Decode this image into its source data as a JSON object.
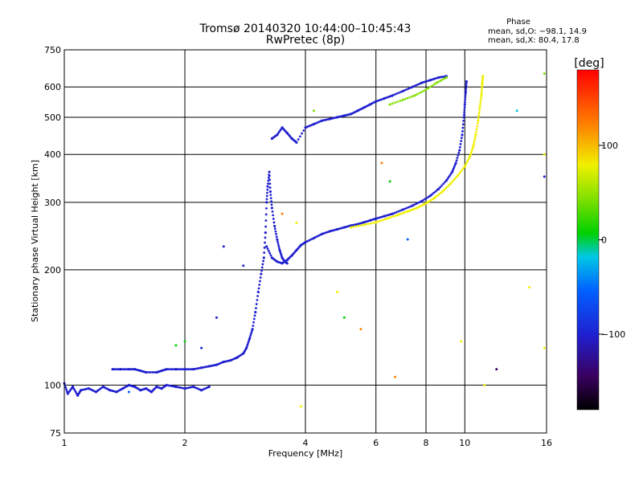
{
  "chart_data": {
    "type": "scatter",
    "title": "Tromsø 20140320 10:44:00–10:45:43",
    "subtitle": "RwPretec (8p)",
    "xlabel": "Frequency [MHz]",
    "ylabel": "Stationary phase Virtual Height [km]",
    "x_scale": "log",
    "y_scale": "log",
    "xlim": [
      1,
      16
    ],
    "ylim": [
      75,
      750
    ],
    "x_ticks": [
      {
        "value": 1,
        "label": "1"
      },
      {
        "value": 2,
        "label": "2"
      },
      {
        "value": 4,
        "label": "4"
      },
      {
        "value": 6,
        "label": "6"
      },
      {
        "value": 8,
        "label": "8"
      },
      {
        "value": 10,
        "label": "10"
      },
      {
        "value": 16,
        "label": "16"
      }
    ],
    "y_ticks": [
      {
        "value": 75,
        "label": "75"
      },
      {
        "value": 100,
        "label": "100"
      },
      {
        "value": 200,
        "label": "200"
      },
      {
        "value": 300,
        "label": "300"
      },
      {
        "value": 400,
        "label": "400"
      },
      {
        "value": 500,
        "label": "500"
      },
      {
        "value": 600,
        "label": "600"
      },
      {
        "value": 750,
        "label": "750"
      }
    ],
    "grid": true,
    "stats": {
      "header": "Phase",
      "line_o": "mean, sd,O: −98.1, 14.9",
      "line_x": "mean, sd,X:  80.4, 17.8"
    },
    "colorbar": {
      "label": "[deg]",
      "ticks": [
        {
          "value": 100,
          "label": "100"
        },
        {
          "value": 0,
          "label": "0"
        },
        {
          "value": -100,
          "label": "−100"
        }
      ],
      "range": [
        -180,
        180
      ]
    },
    "traces": [
      {
        "name": "",
        "phase": -95,
        "points": [
          [
            1.0,
            101
          ],
          [
            1.02,
            95
          ],
          [
            1.05,
            99
          ],
          [
            1.08,
            94
          ],
          [
            1.1,
            97
          ],
          [
            1.15,
            98
          ],
          [
            1.2,
            96
          ],
          [
            1.25,
            99
          ],
          [
            1.3,
            97
          ],
          [
            1.35,
            96
          ],
          [
            1.4,
            98
          ],
          [
            1.45,
            100
          ],
          [
            1.5,
            99
          ],
          [
            1.55,
            97
          ],
          [
            1.6,
            98
          ],
          [
            1.65,
            96
          ],
          [
            1.7,
            99
          ],
          [
            1.75,
            98
          ],
          [
            1.8,
            100
          ],
          [
            1.9,
            99
          ],
          [
            2.0,
            98
          ],
          [
            2.1,
            99
          ],
          [
            2.2,
            97
          ],
          [
            2.3,
            99
          ]
        ]
      },
      {
        "name": "",
        "phase": -98,
        "points": [
          [
            1.32,
            110
          ],
          [
            1.38,
            110
          ],
          [
            1.45,
            110
          ],
          [
            1.5,
            110
          ],
          [
            1.55,
            109
          ],
          [
            1.6,
            108
          ],
          [
            1.7,
            108
          ],
          [
            1.75,
            109
          ],
          [
            1.8,
            110
          ],
          [
            1.9,
            110
          ],
          [
            2.0,
            110
          ],
          [
            2.1,
            110
          ],
          [
            2.2,
            111
          ],
          [
            2.3,
            112
          ],
          [
            2.4,
            113
          ],
          [
            2.5,
            115
          ],
          [
            2.6,
            116
          ],
          [
            2.7,
            118
          ],
          [
            2.8,
            121
          ],
          [
            2.85,
            125
          ],
          [
            2.9,
            132
          ],
          [
            2.95,
            140
          ],
          [
            3.0,
            155
          ],
          [
            3.05,
            175
          ],
          [
            3.1,
            195
          ],
          [
            3.15,
            215
          ],
          [
            3.18,
            250
          ],
          [
            3.2,
            300
          ],
          [
            3.22,
            330
          ],
          [
            3.25,
            360
          ],
          [
            3.27,
            320
          ],
          [
            3.3,
            290
          ],
          [
            3.35,
            260
          ],
          [
            3.4,
            240
          ],
          [
            3.45,
            225
          ],
          [
            3.5,
            215
          ],
          [
            3.55,
            210
          ],
          [
            3.6,
            208
          ]
        ]
      },
      {
        "name": "",
        "phase": -100,
        "points": [
          [
            3.2,
            230
          ],
          [
            3.3,
            215
          ],
          [
            3.4,
            210
          ],
          [
            3.5,
            208
          ],
          [
            3.6,
            212
          ],
          [
            3.7,
            218
          ],
          [
            3.8,
            225
          ],
          [
            3.9,
            232
          ],
          [
            4.0,
            236
          ],
          [
            4.2,
            242
          ],
          [
            4.4,
            248
          ],
          [
            4.6,
            252
          ],
          [
            4.8,
            255
          ],
          [
            5.0,
            258
          ],
          [
            5.2,
            261
          ],
          [
            5.4,
            263
          ],
          [
            5.6,
            266
          ],
          [
            5.8,
            269
          ],
          [
            6.0,
            272
          ],
          [
            6.3,
            276
          ],
          [
            6.6,
            280
          ],
          [
            7.0,
            287
          ],
          [
            7.4,
            294
          ],
          [
            7.8,
            302
          ],
          [
            8.2,
            312
          ],
          [
            8.6,
            325
          ],
          [
            9.0,
            342
          ],
          [
            9.3,
            360
          ],
          [
            9.5,
            380
          ],
          [
            9.7,
            410
          ],
          [
            9.85,
            450
          ],
          [
            9.95,
            500
          ],
          [
            10.0,
            540
          ],
          [
            10.05,
            580
          ],
          [
            10.1,
            620
          ]
        ]
      },
      {
        "name": "",
        "phase": 80,
        "points": [
          [
            5.2,
            258
          ],
          [
            5.6,
            262
          ],
          [
            6.0,
            266
          ],
          [
            6.4,
            272
          ],
          [
            6.8,
            278
          ],
          [
            7.2,
            284
          ],
          [
            7.6,
            290
          ],
          [
            8.0,
            298
          ],
          [
            8.4,
            308
          ],
          [
            8.8,
            320
          ],
          [
            9.2,
            335
          ],
          [
            9.6,
            352
          ],
          [
            10.0,
            372
          ],
          [
            10.3,
            395
          ],
          [
            10.5,
            420
          ],
          [
            10.65,
            450
          ],
          [
            10.8,
            490
          ],
          [
            10.9,
            530
          ],
          [
            11.0,
            570
          ],
          [
            11.05,
            610
          ],
          [
            11.1,
            640
          ]
        ]
      },
      {
        "name": "",
        "phase": -95,
        "points": [
          [
            3.3,
            440
          ],
          [
            3.4,
            450
          ],
          [
            3.5,
            470
          ],
          [
            3.6,
            455
          ],
          [
            3.7,
            440
          ],
          [
            3.8,
            430
          ],
          [
            4.0,
            470
          ],
          [
            4.2,
            480
          ],
          [
            4.4,
            490
          ],
          [
            4.6,
            495
          ],
          [
            4.8,
            500
          ],
          [
            5.0,
            505
          ],
          [
            5.2,
            510
          ],
          [
            5.4,
            520
          ],
          [
            5.6,
            530
          ],
          [
            5.8,
            540
          ],
          [
            6.0,
            550
          ],
          [
            6.3,
            560
          ],
          [
            6.6,
            570
          ],
          [
            7.0,
            585
          ],
          [
            7.4,
            600
          ],
          [
            7.8,
            615
          ],
          [
            8.2,
            625
          ],
          [
            8.6,
            635
          ],
          [
            9.0,
            640
          ]
        ]
      },
      {
        "name": "",
        "phase": 75,
        "points": [
          [
            6.5,
            540
          ],
          [
            7.0,
            555
          ],
          [
            7.5,
            570
          ],
          [
            8.0,
            590
          ],
          [
            8.5,
            615
          ],
          [
            9.0,
            635
          ]
        ]
      }
    ],
    "scattered_points": [
      {
        "x": 2.5,
        "y": 230,
        "phase": -70
      },
      {
        "x": 2.8,
        "y": 205,
        "phase": -60
      },
      {
        "x": 2.4,
        "y": 150,
        "phase": -90
      },
      {
        "x": 2.2,
        "y": 125,
        "phase": -80
      },
      {
        "x": 3.5,
        "y": 280,
        "phase": 150
      },
      {
        "x": 3.8,
        "y": 265,
        "phase": 120
      },
      {
        "x": 4.2,
        "y": 520,
        "phase": 60
      },
      {
        "x": 5.0,
        "y": 150,
        "phase": 40
      },
      {
        "x": 5.5,
        "y": 140,
        "phase": 160
      },
      {
        "x": 6.7,
        "y": 105,
        "phase": 150
      },
      {
        "x": 6.2,
        "y": 380,
        "phase": 150
      },
      {
        "x": 6.5,
        "y": 340,
        "phase": 30
      },
      {
        "x": 7.2,
        "y": 240,
        "phase": -20
      },
      {
        "x": 13.5,
        "y": 520,
        "phase": -10
      },
      {
        "x": 15.8,
        "y": 650,
        "phase": 70
      },
      {
        "x": 15.8,
        "y": 400,
        "phase": 120
      },
      {
        "x": 15.8,
        "y": 350,
        "phase": -100
      },
      {
        "x": 14.5,
        "y": 180,
        "phase": 100
      },
      {
        "x": 15.8,
        "y": 125,
        "phase": 80
      },
      {
        "x": 12.0,
        "y": 110,
        "phase": -120
      },
      {
        "x": 11.2,
        "y": 100,
        "phase": 110
      },
      {
        "x": 9.8,
        "y": 130,
        "phase": 90
      },
      {
        "x": 4.8,
        "y": 175,
        "phase": 90
      },
      {
        "x": 1.45,
        "y": 96,
        "phase": -50
      },
      {
        "x": 3.9,
        "y": 88,
        "phase": 100
      },
      {
        "x": 1.9,
        "y": 127,
        "phase": 30
      },
      {
        "x": 2.0,
        "y": 130,
        "phase": 10
      }
    ]
  }
}
